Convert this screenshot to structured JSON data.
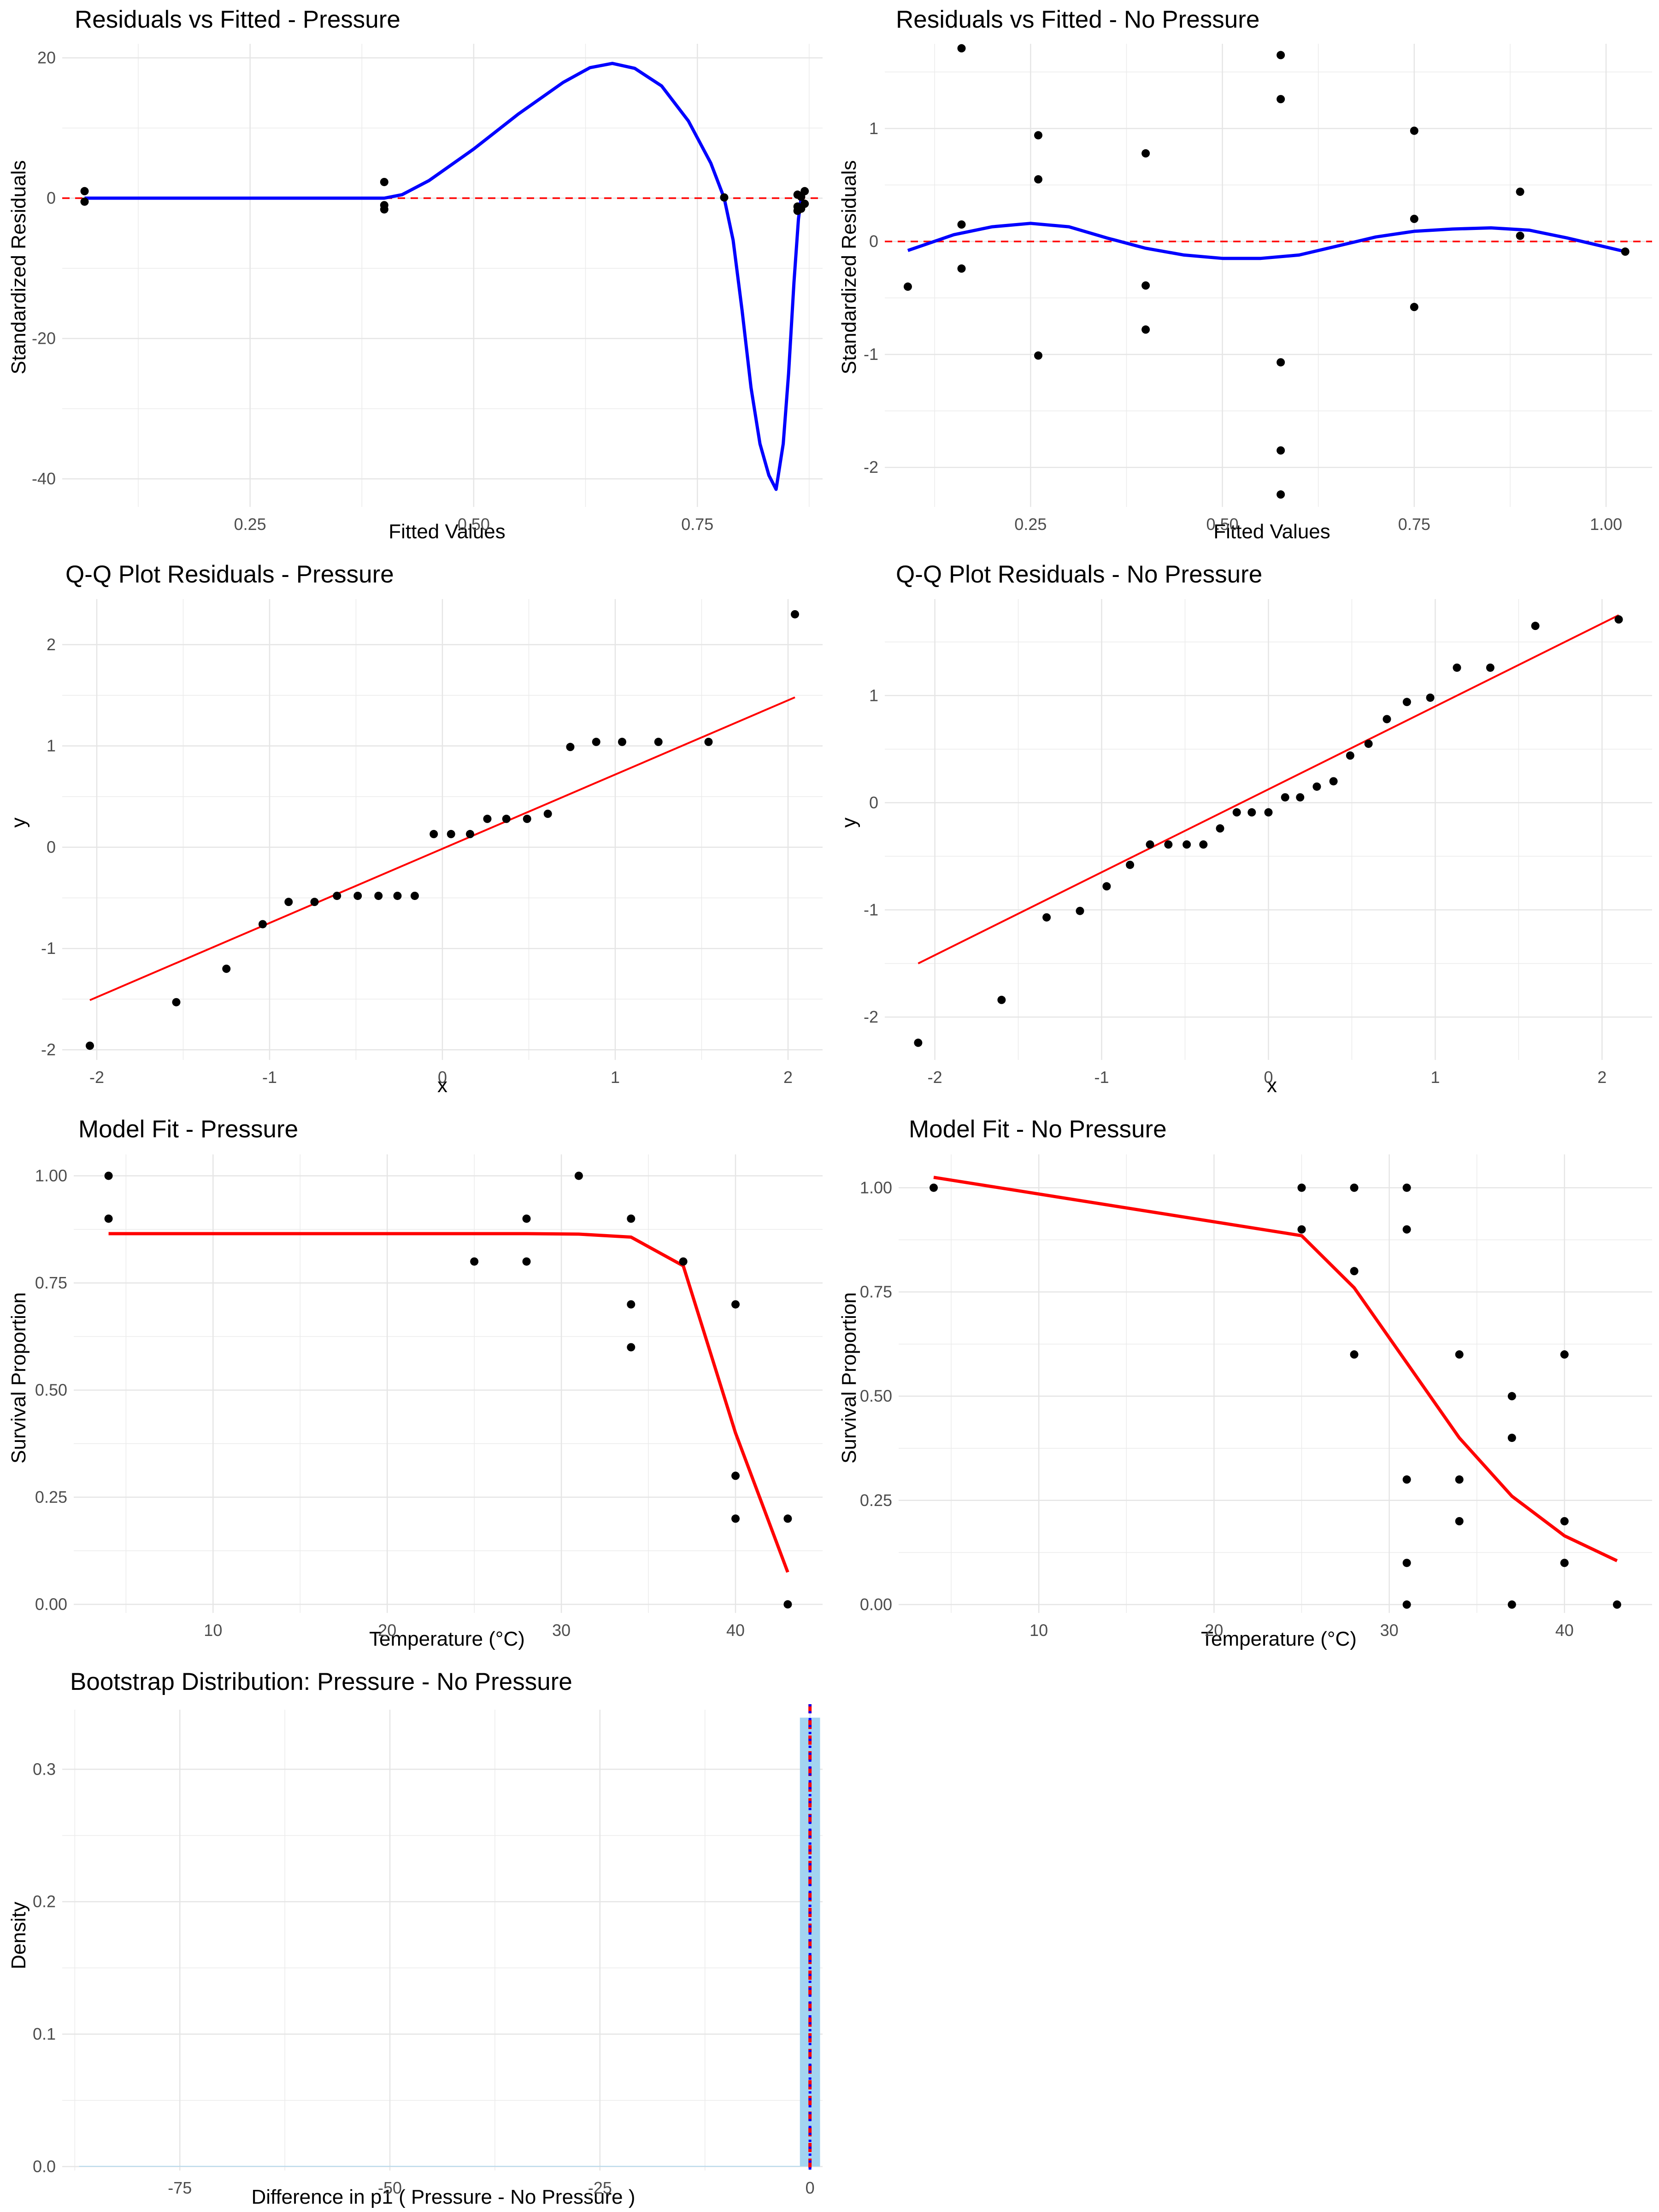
{
  "chart_data": [
    {
      "id": "p1",
      "type": "scatter",
      "title": "Residuals vs Fitted - Pressure",
      "xlabel": "Fitted Values",
      "ylabel": "Standardized Residuals",
      "xlim": [
        0.04,
        0.89
      ],
      "ylim": [
        -44,
        22
      ],
      "xticks": [
        0.25,
        0.5,
        0.75
      ],
      "xtick_labels": [
        "0.25",
        "0.50",
        "0.75"
      ],
      "yticks": [
        -40,
        -20,
        0,
        20
      ],
      "ytick_labels": [
        "-40",
        "-20",
        "0",
        "20"
      ],
      "grid": true,
      "hline": {
        "y": 0,
        "color": "#ff0000",
        "style": "dashed"
      },
      "points": [
        [
          0.065,
          1.0
        ],
        [
          0.065,
          -0.5
        ],
        [
          0.4,
          2.3
        ],
        [
          0.4,
          -1.0
        ],
        [
          0.4,
          -1.6
        ],
        [
          0.78,
          0.1
        ],
        [
          0.862,
          0.5
        ],
        [
          0.862,
          -1.2
        ],
        [
          0.862,
          -1.8
        ],
        [
          0.866,
          0.2
        ],
        [
          0.866,
          -1.5
        ],
        [
          0.87,
          1.0
        ],
        [
          0.87,
          -0.8
        ]
      ],
      "smooth_color": "#0000ff",
      "smooth": [
        [
          0.065,
          0
        ],
        [
          0.2,
          0
        ],
        [
          0.4,
          0
        ],
        [
          0.42,
          0.5
        ],
        [
          0.45,
          2.5
        ],
        [
          0.5,
          7
        ],
        [
          0.55,
          12
        ],
        [
          0.6,
          16.5
        ],
        [
          0.63,
          18.6
        ],
        [
          0.655,
          19.2
        ],
        [
          0.68,
          18.5
        ],
        [
          0.71,
          16
        ],
        [
          0.74,
          11
        ],
        [
          0.765,
          5
        ],
        [
          0.78,
          0
        ],
        [
          0.79,
          -6
        ],
        [
          0.8,
          -16
        ],
        [
          0.81,
          -27
        ],
        [
          0.82,
          -35
        ],
        [
          0.83,
          -39.5
        ],
        [
          0.838,
          -41.5
        ],
        [
          0.846,
          -35
        ],
        [
          0.852,
          -25
        ],
        [
          0.858,
          -12
        ],
        [
          0.863,
          -3
        ],
        [
          0.866,
          0
        ]
      ]
    },
    {
      "id": "p2",
      "type": "scatter",
      "title": "Residuals vs Fitted - No Pressure",
      "xlabel": "Fitted Values",
      "ylabel": "Standardized Residuals",
      "xlim": [
        0.06,
        1.06
      ],
      "ylim": [
        -2.35,
        1.75
      ],
      "xticks": [
        0.25,
        0.5,
        0.75,
        1.0
      ],
      "xtick_labels": [
        "0.25",
        "0.50",
        "0.75",
        "1.00"
      ],
      "yticks": [
        -2,
        -1,
        0,
        1
      ],
      "ytick_labels": [
        "-2",
        "-1",
        "0",
        "1"
      ],
      "grid": true,
      "hline": {
        "y": 0,
        "color": "#ff0000",
        "style": "dashed"
      },
      "points": [
        [
          0.09,
          -0.4
        ],
        [
          0.16,
          1.71
        ],
        [
          0.16,
          0.15
        ],
        [
          0.16,
          -0.24
        ],
        [
          0.26,
          0.94
        ],
        [
          0.26,
          0.55
        ],
        [
          0.26,
          -1.01
        ],
        [
          0.4,
          0.78
        ],
        [
          0.4,
          -0.39
        ],
        [
          0.4,
          -0.78
        ],
        [
          0.576,
          1.65
        ],
        [
          0.576,
          1.26
        ],
        [
          0.576,
          -1.07
        ],
        [
          0.576,
          -1.85
        ],
        [
          0.576,
          -2.24
        ],
        [
          0.75,
          0.98
        ],
        [
          0.75,
          0.2
        ],
        [
          0.75,
          -0.58
        ],
        [
          0.888,
          0.44
        ],
        [
          0.888,
          0.05
        ],
        [
          1.025,
          -0.09
        ]
      ],
      "smooth_color": "#0000ff",
      "smooth": [
        [
          0.09,
          -0.08
        ],
        [
          0.15,
          0.06
        ],
        [
          0.2,
          0.13
        ],
        [
          0.25,
          0.16
        ],
        [
          0.3,
          0.13
        ],
        [
          0.35,
          0.03
        ],
        [
          0.4,
          -0.06
        ],
        [
          0.45,
          -0.12
        ],
        [
          0.5,
          -0.15
        ],
        [
          0.55,
          -0.15
        ],
        [
          0.6,
          -0.12
        ],
        [
          0.65,
          -0.04
        ],
        [
          0.7,
          0.04
        ],
        [
          0.75,
          0.09
        ],
        [
          0.8,
          0.11
        ],
        [
          0.85,
          0.12
        ],
        [
          0.9,
          0.1
        ],
        [
          0.95,
          0.03
        ],
        [
          1.0,
          -0.05
        ],
        [
          1.025,
          -0.09
        ]
      ]
    },
    {
      "id": "p3",
      "type": "scatter",
      "title": "Q-Q Plot Residuals - Pressure",
      "xlabel": "x",
      "ylabel": "y",
      "xlim": [
        -2.2,
        2.2
      ],
      "ylim": [
        -2.1,
        2.45
      ],
      "xticks": [
        -2,
        -1,
        0,
        1,
        2
      ],
      "xtick_labels": [
        "-2",
        "-1",
        "0",
        "1",
        "2"
      ],
      "yticks": [
        -2,
        -1,
        0,
        1,
        2
      ],
      "ytick_labels": [
        "-2",
        "-1",
        "0",
        "1",
        "2"
      ],
      "grid": true,
      "line_color": "#ff0000",
      "line": [
        [
          -2.04,
          -1.51
        ],
        [
          2.04,
          1.48
        ]
      ],
      "points": [
        [
          -2.04,
          -1.96
        ],
        [
          -1.54,
          -1.53
        ],
        [
          -1.25,
          -1.2
        ],
        [
          -1.04,
          -0.76
        ],
        [
          -0.89,
          -0.54
        ],
        [
          -0.74,
          -0.54
        ],
        [
          -0.61,
          -0.48
        ],
        [
          -0.49,
          -0.48
        ],
        [
          -0.37,
          -0.48
        ],
        [
          -0.26,
          -0.48
        ],
        [
          -0.16,
          -0.48
        ],
        [
          -0.05,
          0.13
        ],
        [
          0.05,
          0.13
        ],
        [
          0.16,
          0.13
        ],
        [
          0.26,
          0.28
        ],
        [
          0.37,
          0.28
        ],
        [
          0.49,
          0.28
        ],
        [
          0.61,
          0.33
        ],
        [
          0.74,
          0.99
        ],
        [
          0.89,
          1.04
        ],
        [
          1.04,
          1.04
        ],
        [
          1.25,
          1.04
        ],
        [
          1.54,
          1.04
        ],
        [
          2.04,
          2.3
        ]
      ]
    },
    {
      "id": "p4",
      "type": "scatter",
      "title": "Q-Q Plot Residuals - No Pressure",
      "xlabel": "x",
      "ylabel": "y",
      "xlim": [
        -2.3,
        2.3
      ],
      "ylim": [
        -2.4,
        1.9
      ],
      "xticks": [
        -2,
        -1,
        0,
        1,
        2
      ],
      "xtick_labels": [
        "-2",
        "-1",
        "0",
        "1",
        "2"
      ],
      "yticks": [
        -2,
        -1,
        0,
        1
      ],
      "ytick_labels": [
        "-2",
        "-1",
        "0",
        "1"
      ],
      "grid": true,
      "line_color": "#ff0000",
      "line": [
        [
          -2.1,
          -1.5
        ],
        [
          2.1,
          1.75
        ]
      ],
      "points": [
        [
          -2.1,
          -2.24
        ],
        [
          -1.6,
          -1.84
        ],
        [
          -1.33,
          -1.07
        ],
        [
          -1.13,
          -1.01
        ],
        [
          -0.97,
          -0.78
        ],
        [
          -0.83,
          -0.58
        ],
        [
          -0.71,
          -0.39
        ],
        [
          -0.6,
          -0.39
        ],
        [
          -0.49,
          -0.39
        ],
        [
          -0.39,
          -0.39
        ],
        [
          -0.29,
          -0.24
        ],
        [
          -0.19,
          -0.09
        ],
        [
          -0.1,
          -0.09
        ],
        [
          0.0,
          -0.09
        ],
        [
          0.1,
          0.05
        ],
        [
          0.19,
          0.05
        ],
        [
          0.29,
          0.15
        ],
        [
          0.39,
          0.2
        ],
        [
          0.49,
          0.44
        ],
        [
          0.6,
          0.55
        ],
        [
          0.71,
          0.78
        ],
        [
          0.83,
          0.94
        ],
        [
          0.97,
          0.98
        ],
        [
          1.13,
          1.26
        ],
        [
          1.33,
          1.26
        ],
        [
          1.6,
          1.65
        ],
        [
          2.1,
          1.71
        ]
      ]
    },
    {
      "id": "p5",
      "type": "scatter",
      "title": "Model Fit - Pressure",
      "xlabel": "Temperature (°C)",
      "ylabel": "Survival Proportion",
      "xlim": [
        2.0,
        45.0
      ],
      "ylim": [
        -0.02,
        1.05
      ],
      "xticks": [
        10,
        20,
        30,
        40
      ],
      "xtick_labels": [
        "10",
        "20",
        "30",
        "40"
      ],
      "yticks": [
        0,
        0.25,
        0.5,
        0.75,
        1.0
      ],
      "ytick_labels": [
        "0.00",
        "0.25",
        "0.50",
        "0.75",
        "1.00"
      ],
      "grid": true,
      "line_color": "#ff0000",
      "line": [
        [
          4,
          0.865
        ],
        [
          25,
          0.865
        ],
        [
          28,
          0.865
        ],
        [
          31,
          0.864
        ],
        [
          34,
          0.857
        ],
        [
          37,
          0.79
        ],
        [
          40,
          0.4
        ],
        [
          43,
          0.075
        ]
      ],
      "points": [
        [
          4,
          1.0
        ],
        [
          4,
          0.9
        ],
        [
          25,
          0.8
        ],
        [
          28,
          0.9
        ],
        [
          28,
          0.8
        ],
        [
          31,
          1.0
        ],
        [
          34,
          0.9
        ],
        [
          34,
          0.7
        ],
        [
          34,
          0.6
        ],
        [
          37,
          0.8
        ],
        [
          40,
          0.7
        ],
        [
          40,
          0.3
        ],
        [
          40,
          0.2
        ],
        [
          43,
          0.2
        ],
        [
          43,
          0.0
        ]
      ]
    },
    {
      "id": "p6",
      "type": "scatter",
      "title": "Model Fit - No Pressure",
      "xlabel": "Temperature (°C)",
      "ylabel": "Survival Proportion",
      "xlim": [
        2.0,
        45.0
      ],
      "ylim": [
        -0.02,
        1.08
      ],
      "xticks": [
        10,
        20,
        30,
        40
      ],
      "xtick_labels": [
        "10",
        "20",
        "30",
        "40"
      ],
      "yticks": [
        0,
        0.25,
        0.5,
        0.75,
        1.0
      ],
      "ytick_labels": [
        "0.00",
        "0.25",
        "0.50",
        "0.75",
        "1.00"
      ],
      "grid": true,
      "line_color": "#ff0000",
      "line": [
        [
          4,
          1.025
        ],
        [
          25,
          0.885
        ],
        [
          28,
          0.76
        ],
        [
          31,
          0.58
        ],
        [
          34,
          0.4
        ],
        [
          37,
          0.26
        ],
        [
          40,
          0.165
        ],
        [
          43,
          0.105
        ]
      ],
      "points": [
        [
          4,
          1.0
        ],
        [
          25,
          1.0
        ],
        [
          25,
          0.9
        ],
        [
          28,
          1.0
        ],
        [
          28,
          0.8
        ],
        [
          28,
          0.6
        ],
        [
          31,
          1.0
        ],
        [
          31,
          0.9
        ],
        [
          31,
          0.3
        ],
        [
          31,
          0.1
        ],
        [
          31,
          0.0
        ],
        [
          34,
          0.6
        ],
        [
          34,
          0.3
        ],
        [
          34,
          0.2
        ],
        [
          37,
          0.5
        ],
        [
          37,
          0.4
        ],
        [
          37,
          0.0
        ],
        [
          40,
          0.6
        ],
        [
          40,
          0.2
        ],
        [
          40,
          0.1
        ],
        [
          43,
          0.0
        ]
      ]
    },
    {
      "id": "p7",
      "type": "bar",
      "title": "Bootstrap Distribution: Pressure - No Pressure",
      "xlabel": "Difference in p1 ( Pressure - No Pressure )",
      "ylabel": "Density",
      "xlim": [
        -89,
        1.5
      ],
      "ylim": [
        -0.003,
        0.345
      ],
      "xticks": [
        -75,
        -50,
        -25,
        0
      ],
      "xtick_labels": [
        "-75",
        "-50",
        "-25",
        "0"
      ],
      "yticks": [
        0,
        0.1,
        0.2,
        0.3
      ],
      "ytick_labels": [
        "0.0",
        "0.1",
        "0.2",
        "0.3"
      ],
      "grid": true,
      "bars": [
        {
          "x0": -1.2,
          "x1": 1.2,
          "density": 0.339,
          "fill": "#a3d4f0"
        }
      ],
      "baseline": {
        "x0": -87,
        "x1": -1.2,
        "density": 0.0005
      },
      "vlines": [
        {
          "x": 0.0,
          "color": "#ff0000",
          "style": "dashed"
        },
        {
          "x": 0.0,
          "color": "#0000ff",
          "style": "dotted"
        }
      ]
    }
  ]
}
